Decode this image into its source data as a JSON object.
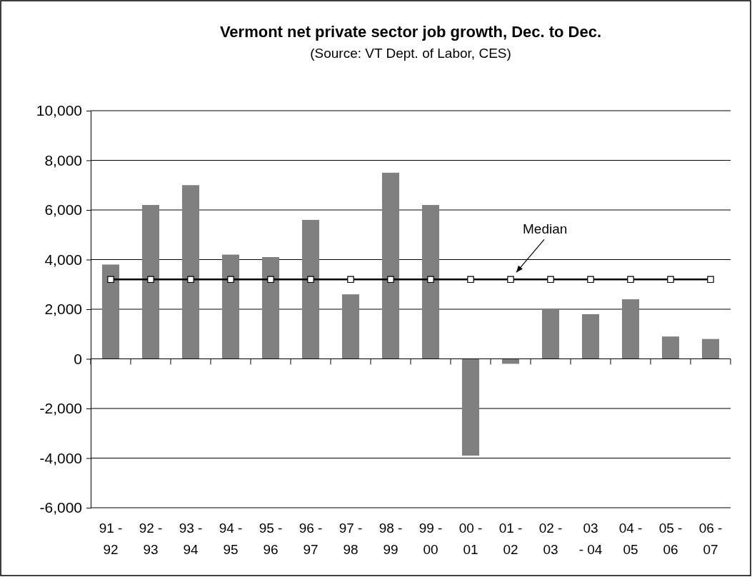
{
  "chart_data": {
    "type": "bar",
    "title": "Vermont net private sector job growth, Dec. to Dec.",
    "subtitle": "(Source: VT Dept. of Labor, CES)",
    "categories": [
      "91 -\n92",
      "92 -\n93",
      "93 -\n94",
      "94 -\n95",
      "95 -\n96",
      "96 -\n97",
      "97 -\n98",
      "98 -\n99",
      "99 -\n00",
      "00 -\n01",
      "01 -\n02",
      "02 -\n03",
      "03\n- 04",
      "04 -\n05",
      "05 -\n06",
      "06 -\n07"
    ],
    "series": [
      {
        "color": "#808080",
        "values": [
          3800,
          6200,
          7000,
          4200,
          4100,
          5600,
          2600,
          7500,
          6200,
          -3900,
          -200,
          2000,
          1800,
          2400,
          900,
          800
        ]
      },
      {
        "type": "line",
        "name": "Median",
        "color": "#000000",
        "marker": "square",
        "values": [
          3200,
          3200,
          3200,
          3200,
          3200,
          3200,
          3200,
          3200,
          3200,
          3200,
          3200,
          3200,
          3200,
          3200,
          3200,
          3200
        ]
      }
    ],
    "ylim": [
      -6000,
      10000
    ],
    "yticks": [
      {
        "value": -6000,
        "label": "-6,000"
      },
      {
        "value": -4000,
        "label": "-4,000"
      },
      {
        "value": -2000,
        "label": "-2,000"
      },
      0,
      {
        "value": 2000,
        "label": "2,000"
      },
      {
        "value": 4000,
        "label": "4,000"
      },
      {
        "value": 6000,
        "label": "6,000"
      },
      {
        "value": 8000,
        "label": "8,000"
      },
      {
        "value": 10000,
        "label": "10,000"
      }
    ],
    "grid": "y"
  }
}
